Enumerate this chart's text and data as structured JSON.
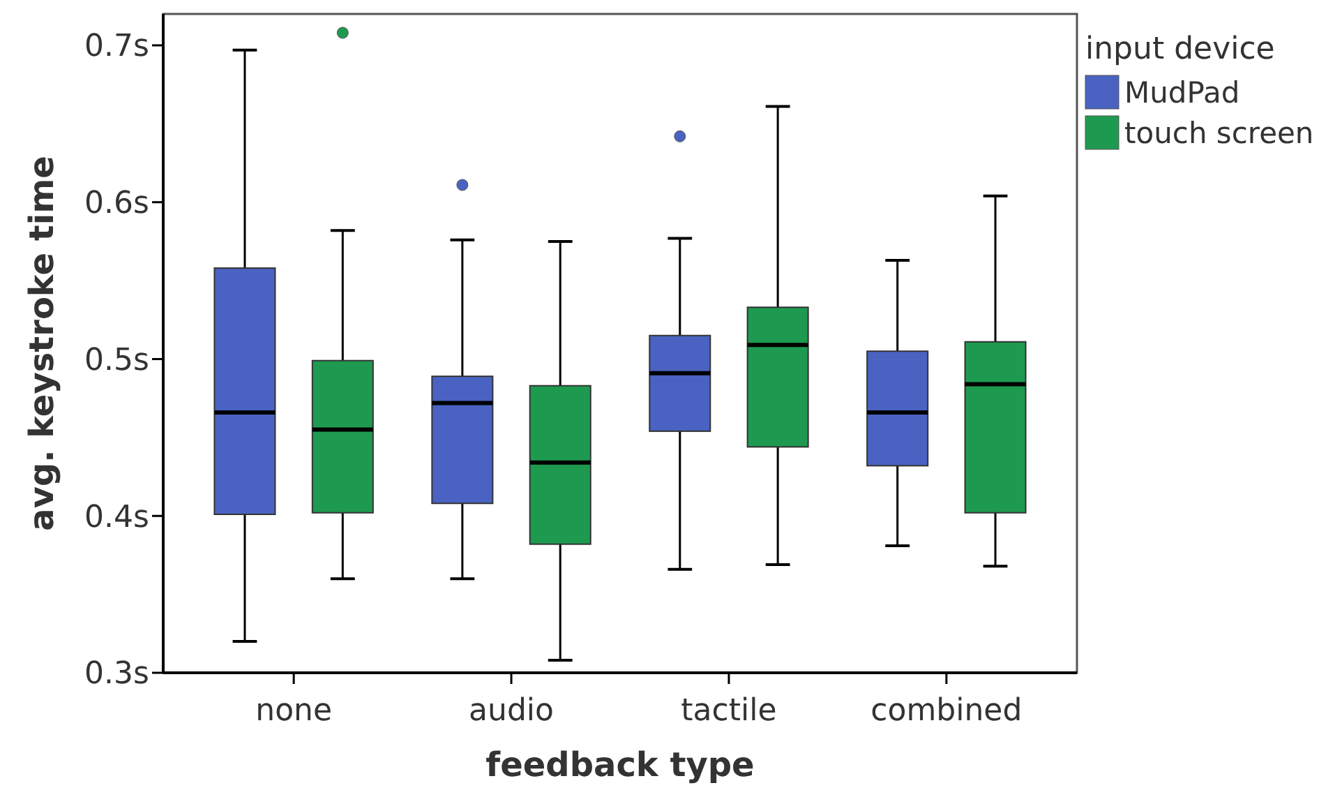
{
  "chart_data": {
    "type": "box",
    "xlabel": "feedback type",
    "ylabel": "avg. keystroke time",
    "legend_title": "input device",
    "legend": "top right",
    "categories": [
      "none",
      "audio",
      "tactile",
      "combined"
    ],
    "ylim": [
      0.3,
      0.72
    ],
    "yticks": [
      {
        "value": 0.3,
        "label": "0.3s"
      },
      {
        "value": 0.4,
        "label": "0.4s"
      },
      {
        "value": 0.5,
        "label": "0.5s"
      },
      {
        "value": 0.6,
        "label": "0.6s"
      },
      {
        "value": 0.7,
        "label": "0.7s"
      }
    ],
    "series": [
      {
        "name": "MudPad",
        "color": "#4a63c2",
        "boxes": [
          {
            "low": 0.32,
            "q1": 0.401,
            "median": 0.466,
            "q3": 0.558,
            "high": 0.697
          },
          {
            "low": 0.36,
            "q1": 0.408,
            "median": 0.472,
            "q3": 0.489,
            "high": 0.576,
            "outliers": [
              0.611
            ]
          },
          {
            "low": 0.366,
            "q1": 0.454,
            "median": 0.491,
            "q3": 0.515,
            "high": 0.577,
            "outliers": [
              0.642
            ]
          },
          {
            "low": 0.381,
            "q1": 0.432,
            "median": 0.466,
            "q3": 0.505,
            "high": 0.563
          }
        ]
      },
      {
        "name": "touch screen",
        "color": "#1e9a50",
        "boxes": [
          {
            "low": 0.36,
            "q1": 0.402,
            "median": 0.455,
            "q3": 0.499,
            "high": 0.582,
            "outliers": [
              0.708
            ]
          },
          {
            "low": 0.308,
            "q1": 0.382,
            "median": 0.434,
            "q3": 0.483,
            "high": 0.575
          },
          {
            "low": 0.369,
            "q1": 0.444,
            "median": 0.509,
            "q3": 0.533,
            "high": 0.661
          },
          {
            "low": 0.368,
            "q1": 0.402,
            "median": 0.484,
            "q3": 0.511,
            "high": 0.604
          }
        ]
      }
    ]
  }
}
